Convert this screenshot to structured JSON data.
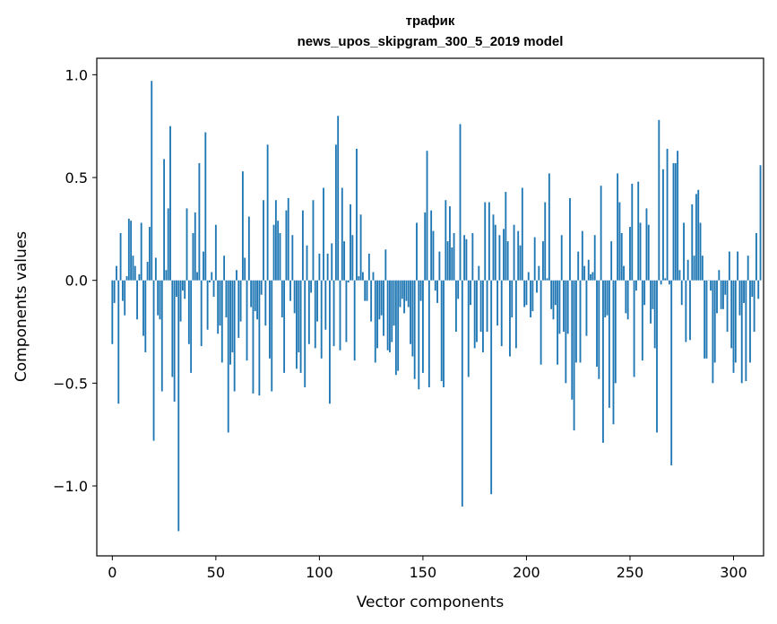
{
  "chart_data": {
    "type": "bar",
    "title": "трафик",
    "subtitle": "news_upos_skipgram_300_5_2019 model",
    "xlabel": "Vector components",
    "ylabel": "Components values",
    "xlim": [
      -7.5,
      314.5
    ],
    "ylim": [
      -1.34,
      1.08
    ],
    "xticks": [
      0,
      50,
      100,
      150,
      200,
      250,
      300
    ],
    "xtick_labels": [
      "0",
      "50",
      "100",
      "150",
      "200",
      "250",
      "300"
    ],
    "yticks": [
      -1.0,
      -0.5,
      0.0,
      0.5,
      1.0
    ],
    "ytick_labels": [
      "−1.0",
      "−0.5",
      "0.0",
      "0.5",
      "1.0"
    ],
    "grid": false,
    "bar_color": "#1f77b4",
    "values": [
      -0.31,
      -0.11,
      0.07,
      -0.6,
      0.23,
      -0.1,
      -0.17,
      0.02,
      0.3,
      0.29,
      0.12,
      0.07,
      -0.19,
      0.03,
      0.28,
      -0.27,
      -0.35,
      0.09,
      0.26,
      0.97,
      -0.78,
      0.11,
      -0.17,
      -0.19,
      -0.54,
      0.59,
      0.05,
      0.35,
      0.75,
      -0.47,
      -0.59,
      -0.08,
      -1.22,
      -0.2,
      -0.05,
      -0.09,
      0.35,
      -0.31,
      -0.45,
      0.23,
      0.33,
      0.04,
      0.57,
      -0.32,
      0.14,
      0.72,
      -0.24,
      -0.01,
      0.04,
      -0.08,
      0.27,
      -0.26,
      -0.22,
      -0.4,
      0.12,
      -0.18,
      -0.74,
      -0.41,
      -0.35,
      -0.54,
      0.05,
      -0.28,
      -0.2,
      0.53,
      0.11,
      -0.39,
      0.31,
      -0.13,
      -0.55,
      -0.15,
      -0.19,
      -0.56,
      -0.07,
      0.39,
      -0.22,
      0.66,
      -0.38,
      -0.54,
      0.27,
      0.39,
      0.29,
      0.23,
      -0.18,
      -0.45,
      0.34,
      0.4,
      -0.1,
      0.22,
      -0.16,
      -0.43,
      -0.35,
      -0.45,
      0.34,
      -0.52,
      0.17,
      -0.31,
      -0.06,
      0.39,
      -0.33,
      -0.2,
      0.13,
      -0.38,
      0.45,
      -0.24,
      0.13,
      -0.6,
      0.18,
      -0.32,
      0.66,
      0.8,
      -0.34,
      0.45,
      0.19,
      -0.3,
      -0.01,
      0.37,
      0.22,
      -0.39,
      0.64,
      0.02,
      0.32,
      0.04,
      -0.1,
      -0.1,
      0.13,
      -0.2,
      0.04,
      -0.4,
      -0.33,
      -0.19,
      -0.17,
      -0.27,
      0.15,
      -0.34,
      -0.35,
      -0.3,
      -0.22,
      -0.46,
      -0.44,
      -0.13,
      -0.09,
      -0.16,
      -0.1,
      -0.13,
      -0.31,
      -0.37,
      -0.48,
      0.28,
      -0.53,
      -0.1,
      -0.45,
      0.33,
      0.63,
      -0.52,
      0.34,
      0.24,
      -0.05,
      -0.11,
      0.14,
      -0.49,
      -0.52,
      0.39,
      0.19,
      0.36,
      0.16,
      0.23,
      -0.25,
      -0.09,
      0.76,
      -1.1,
      0.22,
      0.2,
      -0.47,
      -0.12,
      0.23,
      -0.33,
      -0.3,
      0.07,
      -0.25,
      -0.35,
      0.38,
      -0.25,
      0.38,
      -1.04,
      0.32,
      0.27,
      -0.22,
      0.22,
      -0.32,
      0.25,
      0.43,
      0.19,
      -0.37,
      -0.18,
      0.27,
      -0.33,
      0.24,
      0.17,
      0.45,
      -0.13,
      -0.12,
      0.04,
      -0.18,
      -0.15,
      0.21,
      -0.06,
      0.07,
      -0.41,
      0.19,
      0.38,
      0.01,
      0.52,
      -0.14,
      -0.19,
      -0.12,
      -0.41,
      -0.26,
      0.22,
      -0.25,
      -0.5,
      -0.26,
      0.4,
      -0.58,
      -0.73,
      -0.4,
      0.14,
      -0.4,
      0.24,
      0.07,
      -0.27,
      0.1,
      0.03,
      0.04,
      0.22,
      -0.42,
      -0.48,
      0.46,
      -0.79,
      -0.18,
      -0.17,
      -0.62,
      0.19,
      -0.7,
      -0.5,
      0.52,
      0.38,
      0.23,
      0.07,
      -0.16,
      -0.19,
      0.26,
      0.47,
      -0.47,
      -0.05,
      0.48,
      0.28,
      -0.39,
      -0.12,
      0.35,
      0.27,
      -0.21,
      -0.14,
      -0.33,
      -0.74,
      0.78,
      -0.02,
      0.54,
      0.01,
      0.64,
      -0.02,
      -0.9,
      0.57,
      0.57,
      0.63,
      0.05,
      -0.12,
      0.28,
      -0.3,
      0.1,
      -0.29,
      0.37,
      0.12,
      0.42,
      0.44,
      0.28,
      0.12,
      -0.38,
      -0.38,
      0.0,
      -0.05,
      -0.5,
      -0.4,
      -0.16,
      0.05,
      -0.14,
      -0.14,
      -0.07,
      -0.25,
      0.14,
      -0.33,
      -0.45,
      -0.4,
      0.14,
      -0.17,
      -0.5,
      -0.11,
      -0.49,
      0.12,
      -0.4,
      -0.08,
      -0.25,
      0.23,
      -0.09,
      0.56
    ]
  }
}
